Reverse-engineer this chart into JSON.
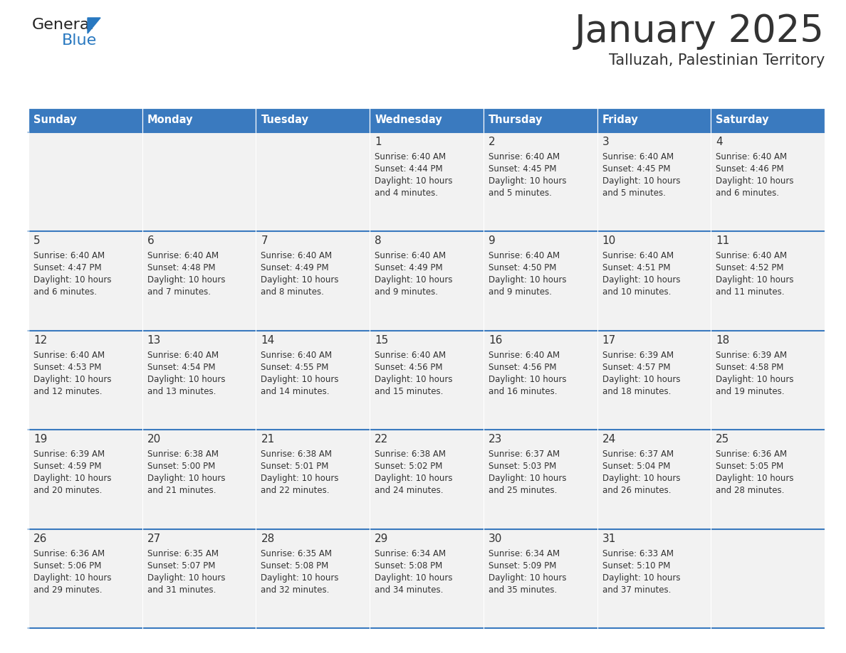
{
  "title": "January 2025",
  "subtitle": "Talluzah, Palestinian Territory",
  "header_bg": "#3a7abf",
  "header_text_color": "#ffffff",
  "cell_bg": "#f2f2f2",
  "divider_color": "#3a7abf",
  "text_color": "#333333",
  "logo_black": "#222222",
  "logo_blue": "#2878c0",
  "days_of_week": [
    "Sunday",
    "Monday",
    "Tuesday",
    "Wednesday",
    "Thursday",
    "Friday",
    "Saturday"
  ],
  "calendar_data": [
    [
      {
        "day": "",
        "sunrise": "",
        "sunset": "",
        "daylight": ""
      },
      {
        "day": "",
        "sunrise": "",
        "sunset": "",
        "daylight": ""
      },
      {
        "day": "",
        "sunrise": "",
        "sunset": "",
        "daylight": ""
      },
      {
        "day": "1",
        "sunrise": "6:40 AM",
        "sunset": "4:44 PM",
        "daylight": "10 hours and 4 minutes."
      },
      {
        "day": "2",
        "sunrise": "6:40 AM",
        "sunset": "4:45 PM",
        "daylight": "10 hours and 5 minutes."
      },
      {
        "day": "3",
        "sunrise": "6:40 AM",
        "sunset": "4:45 PM",
        "daylight": "10 hours and 5 minutes."
      },
      {
        "day": "4",
        "sunrise": "6:40 AM",
        "sunset": "4:46 PM",
        "daylight": "10 hours and 6 minutes."
      }
    ],
    [
      {
        "day": "5",
        "sunrise": "6:40 AM",
        "sunset": "4:47 PM",
        "daylight": "10 hours and 6 minutes."
      },
      {
        "day": "6",
        "sunrise": "6:40 AM",
        "sunset": "4:48 PM",
        "daylight": "10 hours and 7 minutes."
      },
      {
        "day": "7",
        "sunrise": "6:40 AM",
        "sunset": "4:49 PM",
        "daylight": "10 hours and 8 minutes."
      },
      {
        "day": "8",
        "sunrise": "6:40 AM",
        "sunset": "4:49 PM",
        "daylight": "10 hours and 9 minutes."
      },
      {
        "day": "9",
        "sunrise": "6:40 AM",
        "sunset": "4:50 PM",
        "daylight": "10 hours and 9 minutes."
      },
      {
        "day": "10",
        "sunrise": "6:40 AM",
        "sunset": "4:51 PM",
        "daylight": "10 hours and 10 minutes."
      },
      {
        "day": "11",
        "sunrise": "6:40 AM",
        "sunset": "4:52 PM",
        "daylight": "10 hours and 11 minutes."
      }
    ],
    [
      {
        "day": "12",
        "sunrise": "6:40 AM",
        "sunset": "4:53 PM",
        "daylight": "10 hours and 12 minutes."
      },
      {
        "day": "13",
        "sunrise": "6:40 AM",
        "sunset": "4:54 PM",
        "daylight": "10 hours and 13 minutes."
      },
      {
        "day": "14",
        "sunrise": "6:40 AM",
        "sunset": "4:55 PM",
        "daylight": "10 hours and 14 minutes."
      },
      {
        "day": "15",
        "sunrise": "6:40 AM",
        "sunset": "4:56 PM",
        "daylight": "10 hours and 15 minutes."
      },
      {
        "day": "16",
        "sunrise": "6:40 AM",
        "sunset": "4:56 PM",
        "daylight": "10 hours and 16 minutes."
      },
      {
        "day": "17",
        "sunrise": "6:39 AM",
        "sunset": "4:57 PM",
        "daylight": "10 hours and 18 minutes."
      },
      {
        "day": "18",
        "sunrise": "6:39 AM",
        "sunset": "4:58 PM",
        "daylight": "10 hours and 19 minutes."
      }
    ],
    [
      {
        "day": "19",
        "sunrise": "6:39 AM",
        "sunset": "4:59 PM",
        "daylight": "10 hours and 20 minutes."
      },
      {
        "day": "20",
        "sunrise": "6:38 AM",
        "sunset": "5:00 PM",
        "daylight": "10 hours and 21 minutes."
      },
      {
        "day": "21",
        "sunrise": "6:38 AM",
        "sunset": "5:01 PM",
        "daylight": "10 hours and 22 minutes."
      },
      {
        "day": "22",
        "sunrise": "6:38 AM",
        "sunset": "5:02 PM",
        "daylight": "10 hours and 24 minutes."
      },
      {
        "day": "23",
        "sunrise": "6:37 AM",
        "sunset": "5:03 PM",
        "daylight": "10 hours and 25 minutes."
      },
      {
        "day": "24",
        "sunrise": "6:37 AM",
        "sunset": "5:04 PM",
        "daylight": "10 hours and 26 minutes."
      },
      {
        "day": "25",
        "sunrise": "6:36 AM",
        "sunset": "5:05 PM",
        "daylight": "10 hours and 28 minutes."
      }
    ],
    [
      {
        "day": "26",
        "sunrise": "6:36 AM",
        "sunset": "5:06 PM",
        "daylight": "10 hours and 29 minutes."
      },
      {
        "day": "27",
        "sunrise": "6:35 AM",
        "sunset": "5:07 PM",
        "daylight": "10 hours and 31 minutes."
      },
      {
        "day": "28",
        "sunrise": "6:35 AM",
        "sunset": "5:08 PM",
        "daylight": "10 hours and 32 minutes."
      },
      {
        "day": "29",
        "sunrise": "6:34 AM",
        "sunset": "5:08 PM",
        "daylight": "10 hours and 34 minutes."
      },
      {
        "day": "30",
        "sunrise": "6:34 AM",
        "sunset": "5:09 PM",
        "daylight": "10 hours and 35 minutes."
      },
      {
        "day": "31",
        "sunrise": "6:33 AM",
        "sunset": "5:10 PM",
        "daylight": "10 hours and 37 minutes."
      },
      {
        "day": "",
        "sunrise": "",
        "sunset": "",
        "daylight": ""
      }
    ]
  ]
}
